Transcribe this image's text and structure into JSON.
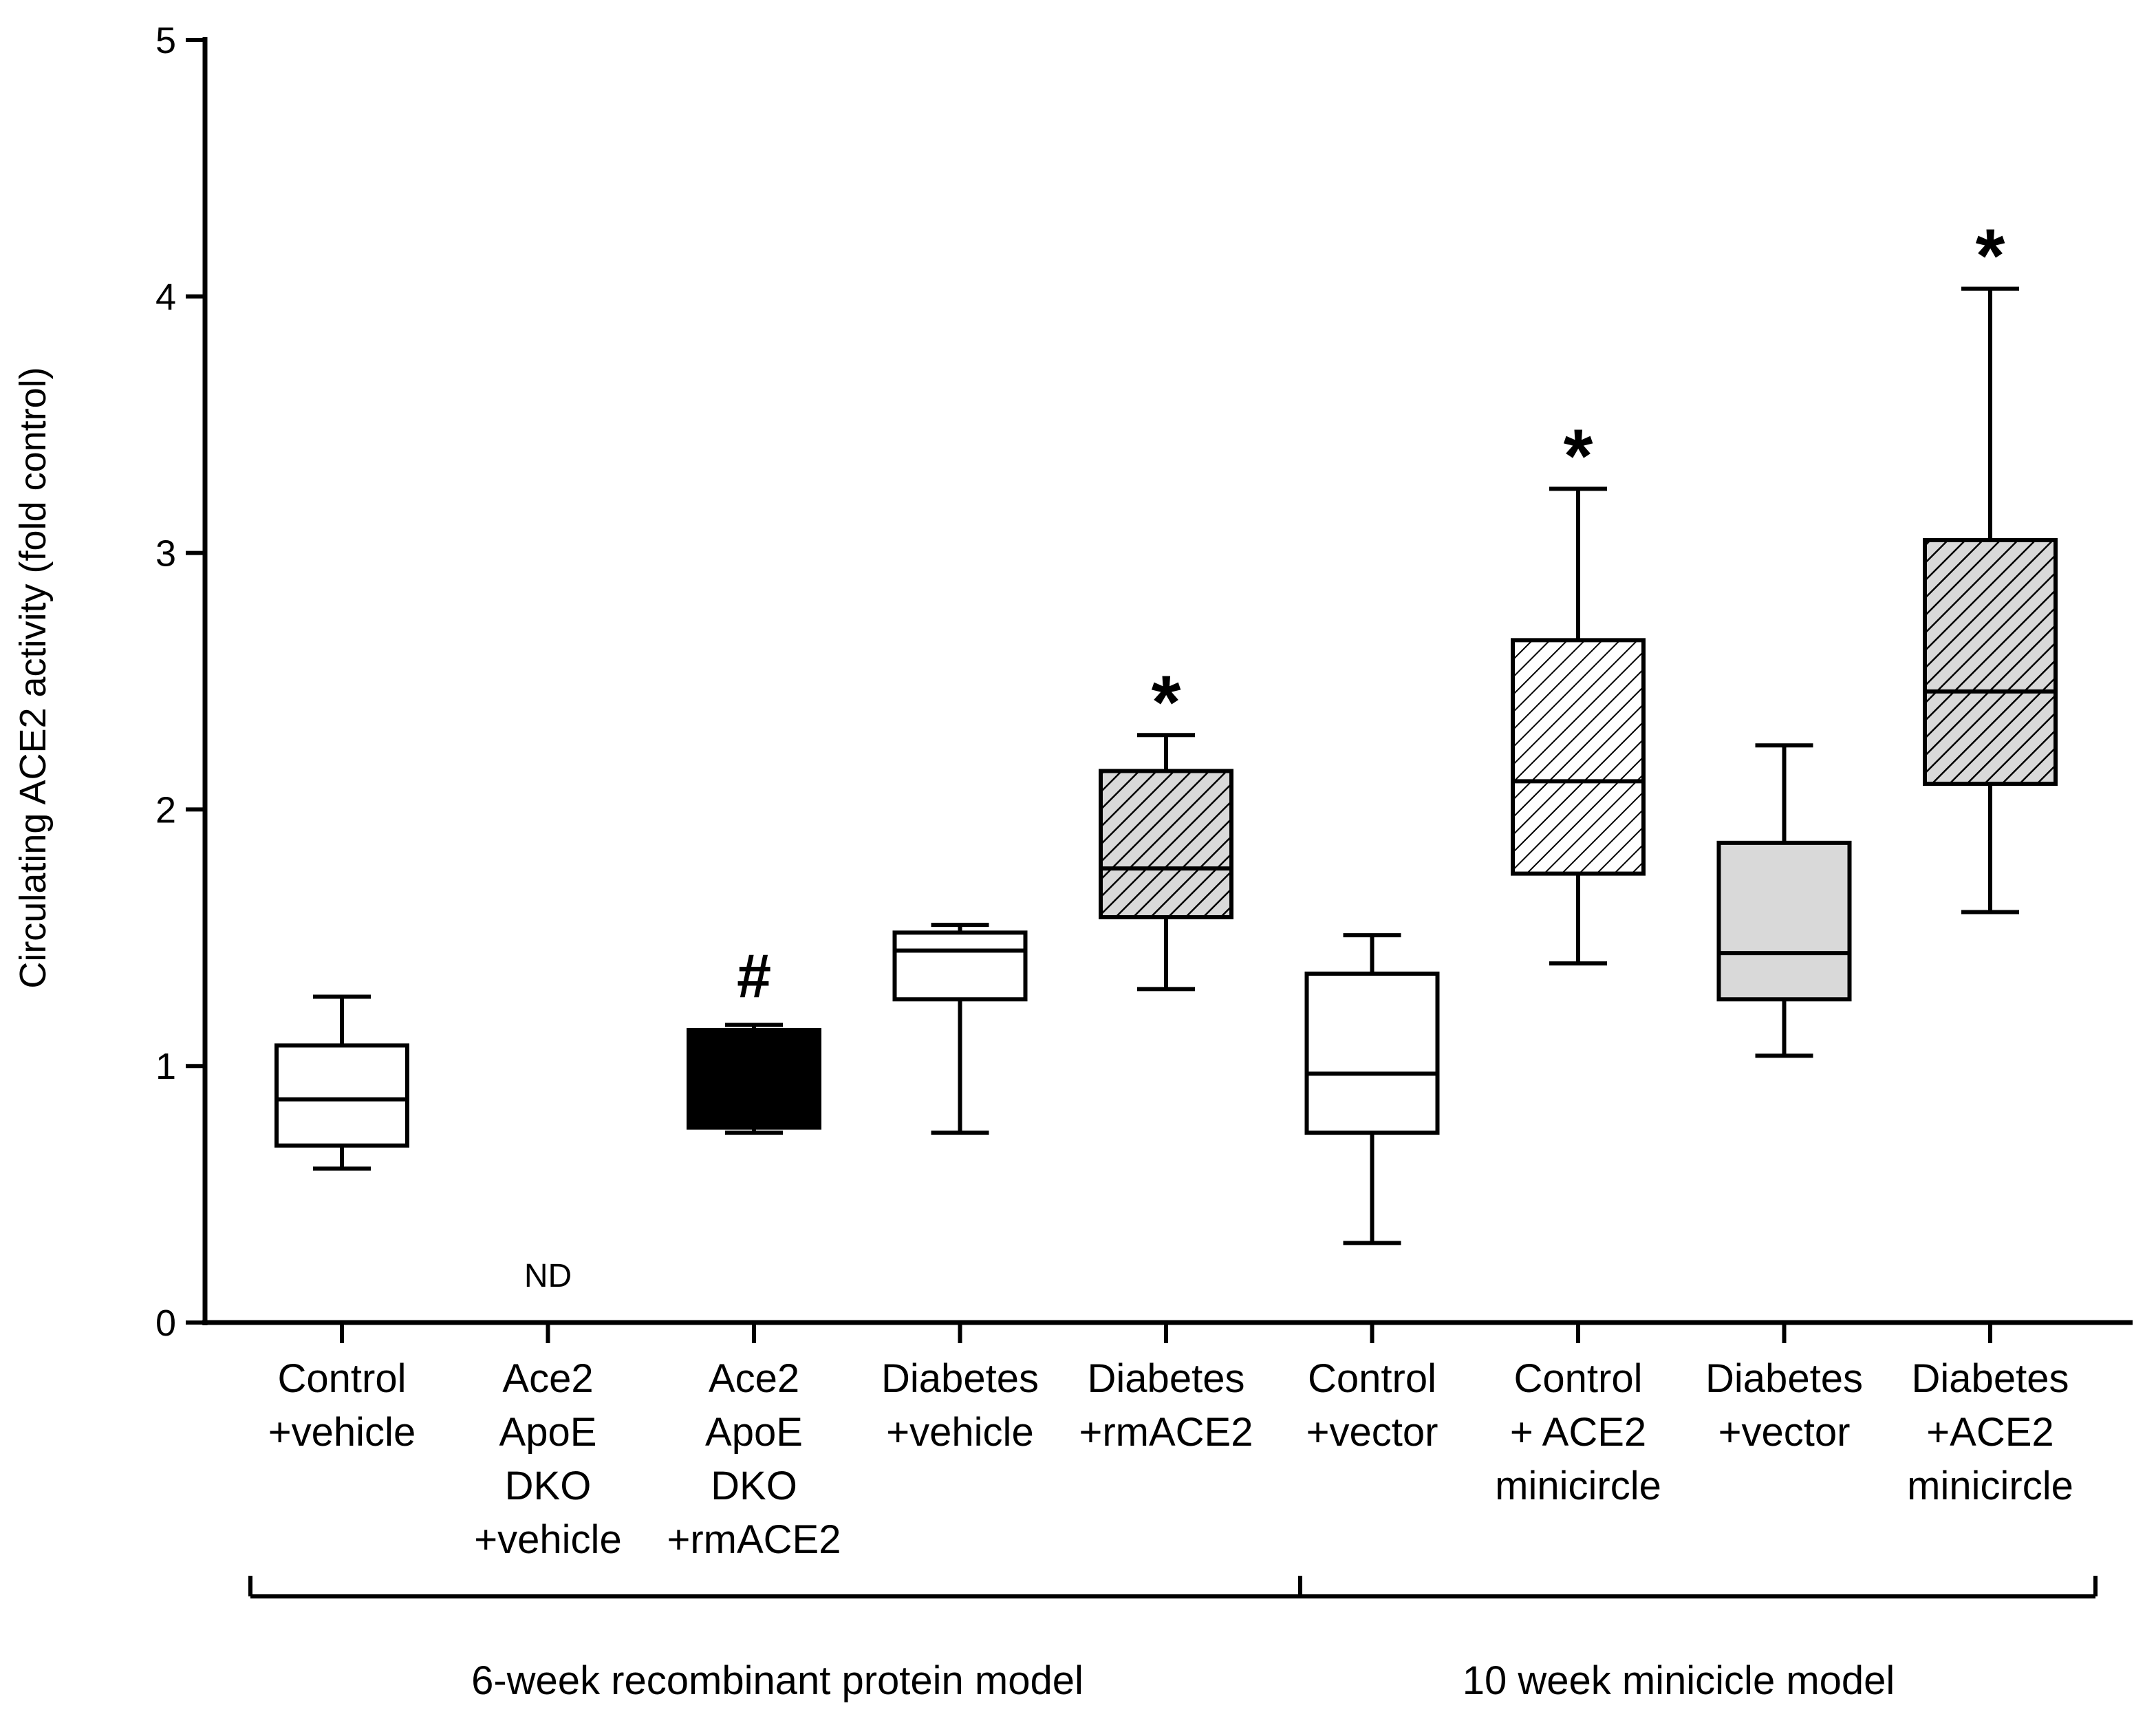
{
  "chart_data": {
    "type": "box",
    "title": "",
    "xlabel": "",
    "ylabel": "Circulating ACE2 activity (fold control)",
    "ylim": [
      0,
      5
    ],
    "yticks": [
      "0",
      "1",
      "2",
      "3",
      "4",
      "5"
    ],
    "grid": false,
    "categories": [
      {
        "lines": [
          "Control",
          "+vehicle"
        ],
        "min": 0.6,
        "q1": 0.69,
        "median": 0.87,
        "q3": 1.08,
        "max": 1.27,
        "fill": "white",
        "marker": "",
        "nd": false
      },
      {
        "lines": [
          "Ace2",
          "ApoE",
          "DKO",
          "+vehicle"
        ],
        "min": null,
        "q1": null,
        "median": null,
        "q3": null,
        "max": null,
        "fill": "none",
        "marker": "",
        "nd": true
      },
      {
        "lines": [
          "Ace2",
          "ApoE",
          "DKO",
          "+rmACE2"
        ],
        "min": 0.74,
        "q1": 0.76,
        "median": 1.13,
        "q3": 1.14,
        "max": 1.16,
        "fill": "black",
        "marker": "#",
        "nd": false
      },
      {
        "lines": [
          "Diabetes",
          "+vehicle"
        ],
        "min": 0.74,
        "q1": 1.26,
        "median": 1.45,
        "q3": 1.52,
        "max": 1.55,
        "fill": "white",
        "marker": "",
        "nd": false
      },
      {
        "lines": [
          "Diabetes",
          "+rmACE2"
        ],
        "min": 1.3,
        "q1": 1.58,
        "median": 1.77,
        "q3": 2.15,
        "max": 2.29,
        "fill": "hatch",
        "marker": "*",
        "nd": false
      },
      {
        "lines": [
          "Control",
          "+vector"
        ],
        "min": 0.31,
        "q1": 0.74,
        "median": 0.97,
        "q3": 1.36,
        "max": 1.51,
        "fill": "white",
        "marker": "",
        "nd": false
      },
      {
        "lines": [
          "Control",
          "+ ACE2",
          "minicircle"
        ],
        "min": 1.4,
        "q1": 1.75,
        "median": 2.11,
        "q3": 2.66,
        "max": 3.25,
        "fill": "hatch-light",
        "marker": "*",
        "nd": false
      },
      {
        "lines": [
          "Diabetes",
          "+vector"
        ],
        "min": 1.04,
        "q1": 1.26,
        "median": 1.44,
        "q3": 1.87,
        "max": 2.25,
        "fill": "gray",
        "marker": "",
        "nd": false
      },
      {
        "lines": [
          "Diabetes",
          "+ACE2",
          "minicircle"
        ],
        "min": 1.6,
        "q1": 2.1,
        "median": 2.46,
        "q3": 3.05,
        "max": 4.03,
        "fill": "hatch",
        "marker": "*",
        "nd": false
      }
    ],
    "nd_text": "ND",
    "groups": [
      {
        "label": "6-week recombinant protein model",
        "from": 0,
        "to": 4
      },
      {
        "label": "10 week minicicle model",
        "from": 5,
        "to": 8
      }
    ],
    "colors": {
      "line": "#000000",
      "gray_fill": "#d9d9d9",
      "hatch_bg": "#d9d9d9",
      "hatch_light_bg": "#ffffff"
    }
  }
}
